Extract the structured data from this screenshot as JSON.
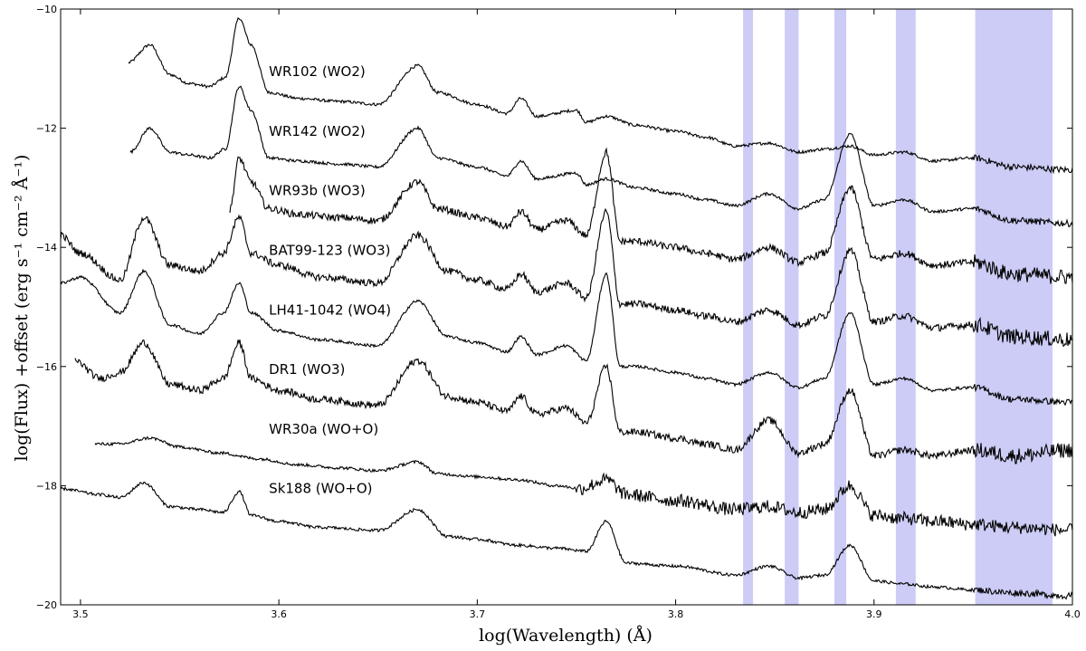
{
  "chart_data": {
    "type": "line",
    "title": "",
    "xlabel": "log(Wavelength) (Å)",
    "ylabel": "log(Flux) +offset (erg s⁻¹ cm⁻² Å⁻¹)",
    "xlim": [
      3.49,
      4.0
    ],
    "ylim": [
      -20,
      -10
    ],
    "x_ticks": [
      "3.5",
      "3.6",
      "3.7",
      "3.8",
      "3.9",
      "4.0"
    ],
    "y_ticks": [
      "−10",
      "−12",
      "−14",
      "−16",
      "−18",
      "−20"
    ],
    "grid": false,
    "shaded_regions": [
      [
        3.834,
        3.839
      ],
      [
        3.855,
        3.862
      ],
      [
        3.88,
        3.886
      ],
      [
        3.911,
        3.921
      ],
      [
        3.951,
        3.99
      ]
    ],
    "series": [
      {
        "name": "WR102 (WO2)",
        "label_at": [
          3.595,
          -11.05
        ],
        "x": [
          3.524,
          3.535,
          3.545,
          3.555,
          3.565,
          3.573,
          3.58,
          3.586,
          3.595,
          3.61,
          3.63,
          3.65,
          3.67,
          3.68,
          3.7,
          3.715,
          3.722,
          3.73,
          3.75,
          3.755,
          3.765,
          3.78,
          3.8,
          3.815,
          3.83,
          3.847,
          3.862,
          3.875,
          3.888,
          3.9,
          3.915,
          3.93,
          3.95,
          3.97,
          4.0
        ],
        "y": [
          -10.9,
          -10.6,
          -11.1,
          -11.25,
          -11.3,
          -11.15,
          -10.15,
          -10.6,
          -11.4,
          -11.5,
          -11.55,
          -11.6,
          -10.95,
          -11.4,
          -11.6,
          -11.75,
          -11.5,
          -11.8,
          -11.7,
          -11.9,
          -11.8,
          -11.95,
          -12.05,
          -12.15,
          -12.3,
          -12.25,
          -12.4,
          -12.35,
          -12.3,
          -12.45,
          -12.4,
          -12.55,
          -12.5,
          -12.65,
          -12.7
        ]
      },
      {
        "name": "WR142 (WO2)",
        "label_at": [
          3.595,
          -12.05
        ],
        "x": [
          3.525,
          3.535,
          3.545,
          3.555,
          3.565,
          3.573,
          3.58,
          3.586,
          3.595,
          3.61,
          3.63,
          3.65,
          3.67,
          3.68,
          3.7,
          3.715,
          3.722,
          3.73,
          3.75,
          3.755,
          3.765,
          3.78,
          3.8,
          3.815,
          3.83,
          3.847,
          3.862,
          3.875,
          3.888,
          3.9,
          3.915,
          3.93,
          3.95,
          3.97,
          4.0
        ],
        "y": [
          -12.4,
          -12.0,
          -12.4,
          -12.45,
          -12.5,
          -12.35,
          -11.3,
          -11.7,
          -12.5,
          -12.55,
          -12.6,
          -12.65,
          -12.0,
          -12.5,
          -12.65,
          -12.8,
          -12.55,
          -12.85,
          -12.75,
          -12.95,
          -12.85,
          -13.0,
          -13.1,
          -13.2,
          -13.3,
          -13.1,
          -13.35,
          -13.2,
          -12.1,
          -13.3,
          -13.2,
          -13.4,
          -13.35,
          -13.55,
          -13.6
        ]
      },
      {
        "name": "WR93b (WO3)",
        "label_at": [
          3.595,
          -13.05
        ],
        "x": [
          3.575,
          3.58,
          3.586,
          3.595,
          3.61,
          3.63,
          3.65,
          3.67,
          3.68,
          3.7,
          3.715,
          3.722,
          3.73,
          3.745,
          3.755,
          3.765,
          3.772,
          3.78,
          3.8,
          3.815,
          3.83,
          3.847,
          3.862,
          3.875,
          3.888,
          3.9,
          3.915,
          3.93,
          3.95,
          3.97,
          4.0
        ],
        "y": [
          -13.4,
          -12.5,
          -12.9,
          -13.35,
          -13.45,
          -13.5,
          -13.55,
          -12.9,
          -13.35,
          -13.5,
          -13.65,
          -13.4,
          -13.7,
          -13.55,
          -13.8,
          -12.4,
          -13.9,
          -13.9,
          -14.0,
          -14.1,
          -14.2,
          -14.0,
          -14.25,
          -14.1,
          -13.0,
          -14.2,
          -14.1,
          -14.3,
          -14.25,
          -14.45,
          -14.5
        ]
      },
      {
        "name": "BAT99-123 (WO3)",
        "label_at": [
          3.595,
          -14.05
        ],
        "x": [
          3.49,
          3.5,
          3.52,
          3.532,
          3.545,
          3.56,
          3.572,
          3.58,
          3.586,
          3.6,
          3.62,
          3.65,
          3.67,
          3.685,
          3.7,
          3.715,
          3.722,
          3.73,
          3.745,
          3.755,
          3.765,
          3.772,
          3.78,
          3.8,
          3.815,
          3.83,
          3.847,
          3.862,
          3.875,
          3.888,
          3.9,
          3.915,
          3.93,
          3.95,
          3.97,
          4.0
        ],
        "y": [
          -13.8,
          -14.1,
          -14.55,
          -13.5,
          -14.3,
          -14.4,
          -14.1,
          -13.5,
          -14.1,
          -14.3,
          -14.5,
          -14.6,
          -13.8,
          -14.4,
          -14.55,
          -14.7,
          -14.45,
          -14.75,
          -14.6,
          -14.85,
          -13.4,
          -14.95,
          -14.95,
          -15.05,
          -15.15,
          -15.25,
          -15.05,
          -15.3,
          -15.15,
          -14.05,
          -15.25,
          -15.15,
          -15.35,
          -15.3,
          -15.5,
          -15.55
        ]
      },
      {
        "name": "LH41-1042 (WO4)",
        "label_at": [
          3.595,
          -15.05
        ],
        "x": [
          3.49,
          3.5,
          3.52,
          3.532,
          3.545,
          3.56,
          3.572,
          3.58,
          3.586,
          3.6,
          3.62,
          3.65,
          3.67,
          3.685,
          3.7,
          3.715,
          3.722,
          3.73,
          3.745,
          3.755,
          3.765,
          3.772,
          3.78,
          3.8,
          3.815,
          3.83,
          3.847,
          3.862,
          3.875,
          3.888,
          3.9,
          3.915,
          3.93,
          3.95,
          3.97,
          4.0
        ],
        "y": [
          -14.6,
          -14.5,
          -15.1,
          -14.4,
          -15.3,
          -15.45,
          -15.1,
          -14.6,
          -15.1,
          -15.4,
          -15.55,
          -15.65,
          -14.9,
          -15.5,
          -15.6,
          -15.75,
          -15.5,
          -15.8,
          -15.65,
          -15.9,
          -14.45,
          -16.0,
          -16.0,
          -16.1,
          -16.2,
          -16.3,
          -16.1,
          -16.35,
          -16.2,
          -15.1,
          -16.3,
          -16.2,
          -16.4,
          -16.35,
          -16.55,
          -16.6
        ]
      },
      {
        "name": "DR1 (WO3)",
        "label_at": [
          3.595,
          -16.05
        ],
        "x": [
          3.497,
          3.51,
          3.52,
          3.532,
          3.545,
          3.56,
          3.572,
          3.58,
          3.586,
          3.6,
          3.62,
          3.65,
          3.67,
          3.685,
          3.7,
          3.715,
          3.722,
          3.73,
          3.745,
          3.755,
          3.765,
          3.772,
          3.78,
          3.8,
          3.815,
          3.83,
          3.847,
          3.862,
          3.875,
          3.888,
          3.9,
          3.915,
          3.93,
          3.95,
          3.97,
          4.0
        ],
        "y": [
          -15.9,
          -16.2,
          -16.1,
          -15.6,
          -16.3,
          -16.4,
          -16.2,
          -15.6,
          -16.2,
          -16.4,
          -16.55,
          -16.65,
          -15.9,
          -16.5,
          -16.6,
          -16.75,
          -16.5,
          -16.8,
          -16.7,
          -16.95,
          -16.0,
          -17.1,
          -17.1,
          -17.2,
          -17.3,
          -17.4,
          -16.9,
          -17.45,
          -17.3,
          -16.4,
          -17.5,
          -17.4,
          -17.5,
          -17.4,
          -17.5,
          -17.4
        ]
      },
      {
        "name": "WR30a (WO+O)",
        "label_at": [
          3.595,
          -17.05
        ],
        "x": [
          3.507,
          3.52,
          3.535,
          3.55,
          3.57,
          3.59,
          3.61,
          3.63,
          3.65,
          3.67,
          3.68,
          3.7,
          3.72,
          3.74,
          3.752,
          3.765,
          3.775,
          3.8,
          3.83,
          3.847,
          3.862,
          3.875,
          3.888,
          3.9,
          3.915,
          3.93,
          3.95,
          3.97,
          4.0
        ],
        "y": [
          -17.3,
          -17.3,
          -17.2,
          -17.35,
          -17.45,
          -17.55,
          -17.65,
          -17.7,
          -17.75,
          -17.6,
          -17.8,
          -17.85,
          -17.9,
          -18.0,
          -18.05,
          -17.9,
          -18.15,
          -18.25,
          -18.4,
          -18.35,
          -18.45,
          -18.4,
          -18.0,
          -18.5,
          -18.55,
          -18.6,
          -18.65,
          -18.7,
          -18.75
        ]
      },
      {
        "name": "Sk188 (WO+O)",
        "label_at": [
          3.595,
          -18.05
        ],
        "x": [
          3.49,
          3.51,
          3.52,
          3.532,
          3.545,
          3.56,
          3.572,
          3.58,
          3.586,
          3.6,
          3.62,
          3.65,
          3.67,
          3.685,
          3.7,
          3.72,
          3.74,
          3.755,
          3.765,
          3.775,
          3.8,
          3.83,
          3.847,
          3.862,
          3.875,
          3.888,
          3.9,
          3.915,
          3.93,
          3.95,
          3.97,
          4.0
        ],
        "y": [
          -18.05,
          -18.15,
          -18.2,
          -17.95,
          -18.35,
          -18.4,
          -18.45,
          -18.1,
          -18.5,
          -18.6,
          -18.7,
          -18.75,
          -18.4,
          -18.85,
          -18.9,
          -19.0,
          -19.05,
          -19.1,
          -18.6,
          -19.3,
          -19.35,
          -19.5,
          -19.35,
          -19.55,
          -19.5,
          -19.0,
          -19.6,
          -19.65,
          -19.7,
          -19.75,
          -19.8,
          -19.85
        ]
      }
    ]
  }
}
